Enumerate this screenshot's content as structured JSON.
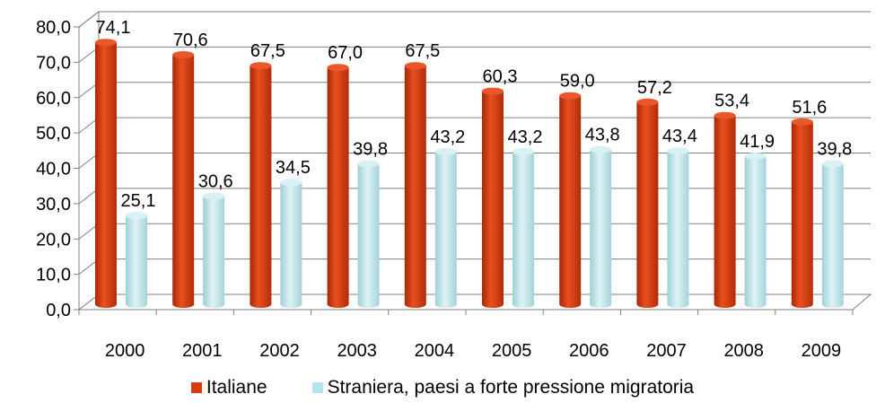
{
  "chart_data": {
    "type": "bar",
    "categories": [
      "2000",
      "2001",
      "2002",
      "2003",
      "2004",
      "2005",
      "2006",
      "2007",
      "2008",
      "2009"
    ],
    "series": [
      {
        "name": "Italiane",
        "values": [
          74.1,
          70.6,
          67.5,
          67.0,
          67.5,
          60.3,
          59.0,
          57.2,
          53.4,
          51.6
        ],
        "labels": [
          "74,1",
          "70,6",
          "67,5",
          "67,0",
          "67,5",
          "60,3",
          "59,0",
          "57,2",
          "53,4",
          "51,6"
        ],
        "color": "#d63a10"
      },
      {
        "name": "Straniera, paesi a forte pressione migratoria",
        "values": [
          25.1,
          30.6,
          34.5,
          39.8,
          43.2,
          43.2,
          43.8,
          43.4,
          41.9,
          39.8
        ],
        "labels": [
          "25,1",
          "30,6",
          "34,5",
          "39,8",
          "43,2",
          "43,2",
          "43,8",
          "43,4",
          "41,9",
          "39,8"
        ],
        "color": "#b7e3ea"
      }
    ],
    "yticks": [
      "0,0",
      "10,0",
      "20,0",
      "30,0",
      "40,0",
      "50,0",
      "60,0",
      "70,0",
      "80,0"
    ],
    "ylim": [
      0,
      80
    ],
    "grid": true,
    "legend_position": "bottom",
    "style": "3d-cylinder"
  },
  "legend": {
    "item1": "Italiane",
    "item2": "Straniera, paesi a forte pressione migratoria"
  }
}
